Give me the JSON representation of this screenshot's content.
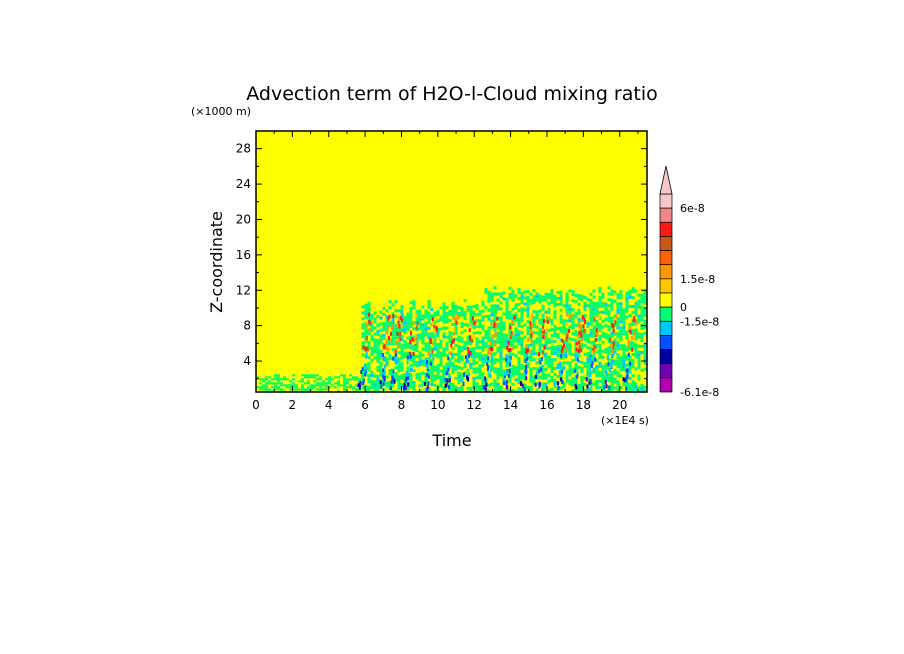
{
  "chart_data": {
    "type": "heatmap",
    "title": "Advection term of H2O-l-Cloud mixing ratio",
    "xlabel": "Time",
    "ylabel": "Z-coordinate",
    "x_unit": "(×1E4 s)",
    "y_unit": "(×1000 m)",
    "xlim": [
      0,
      21.5
    ],
    "ylim": [
      0.5,
      30
    ],
    "x_ticks": [
      0,
      2,
      4,
      6,
      8,
      10,
      12,
      14,
      16,
      18,
      20
    ],
    "y_ticks": [
      4,
      8,
      12,
      16,
      20,
      24,
      28
    ],
    "x_tick_labels": [
      "0",
      "2",
      "4",
      "6",
      "8",
      "10",
      "12",
      "14",
      "16",
      "18",
      "20"
    ],
    "y_tick_labels": [
      "4",
      "8",
      "12",
      "16",
      "20",
      "24",
      "28"
    ],
    "background_color": "#ffff00",
    "colorbar": {
      "label_values": [
        "6e-8",
        "1.5e-8",
        "0",
        "-1.5e-8",
        "-6.1e-8"
      ],
      "colors_top_to_bottom": [
        "#f8c8c8",
        "#f08888",
        "#ff1818",
        "#c85818",
        "#ff6000",
        "#ff9800",
        "#ffc800",
        "#ffff00",
        "#00ff70",
        "#00c8ff",
        "#0050ff",
        "#0000a0",
        "#7000b0",
        "#b000b0"
      ],
      "extend": "max"
    },
    "regions": {
      "low_level_layer_top_km": 2.5,
      "convective_onset_time": 5.8,
      "cloud_top_km_early": 10.5,
      "cloud_top_km_late": 12.3,
      "convective_cells_time": [
        5.9,
        7.0,
        7.6,
        8.4,
        9.5,
        10.6,
        11.6,
        12.8,
        13.8,
        14.8,
        15.6,
        16.8,
        17.6,
        18.4,
        19.4,
        20.4
      ]
    }
  }
}
